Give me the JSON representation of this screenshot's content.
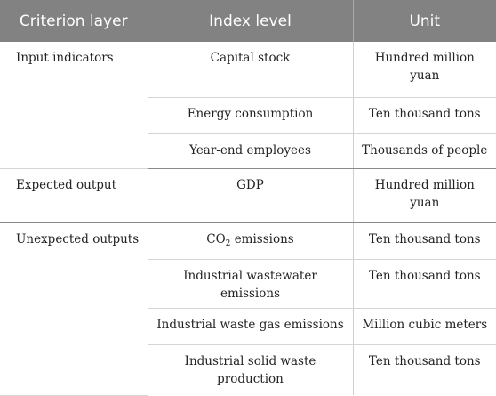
{
  "table": {
    "headers": [
      "Criterion layer",
      "Index level",
      "Unit"
    ],
    "groups": [
      {
        "criterion": "Input indicators",
        "rows": [
          {
            "index": "Capital stock",
            "unit": "Hundred million yuan"
          },
          {
            "index": "Energy consumption",
            "unit": "Ten thousand tons"
          },
          {
            "index": "Year-end employees",
            "unit": "Thousands of people"
          }
        ]
      },
      {
        "criterion": "Expected output",
        "rows": [
          {
            "index": "GDP",
            "unit": "Hundred million yuan"
          }
        ]
      },
      {
        "criterion": "Unexpected outputs",
        "rows": [
          {
            "index_prefix": "CO",
            "index_sub": "2",
            "index_suffix": " emissions",
            "unit": "Ten thousand tons"
          },
          {
            "index": "Industrial wastewater emissions",
            "unit": "Ten thousand tons"
          },
          {
            "index": "Industrial waste gas emissions",
            "unit": "Million cubic meters"
          },
          {
            "index": "Industrial solid waste production",
            "unit": "Ten thousand tons"
          }
        ]
      }
    ]
  }
}
